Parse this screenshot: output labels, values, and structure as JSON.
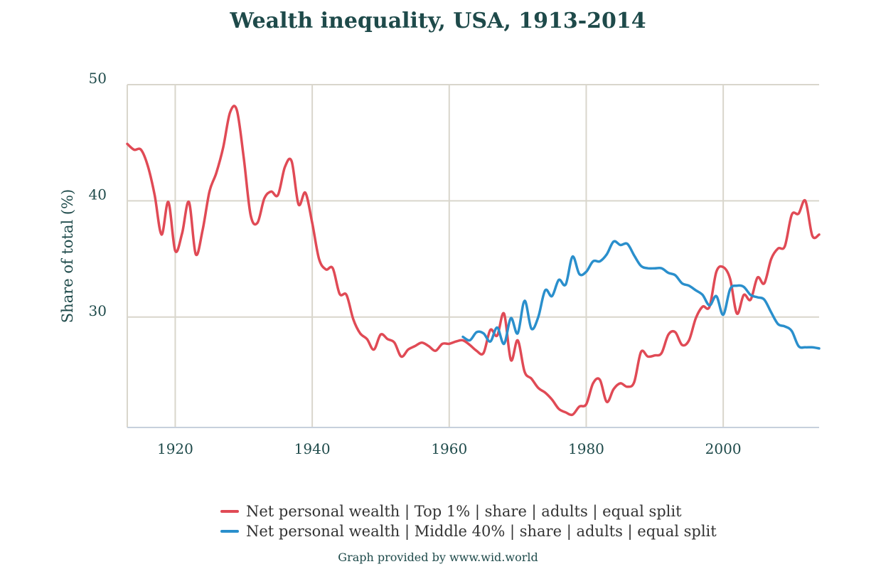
{
  "chart_data": {
    "type": "line",
    "title": "Wealth inequality, USA, 1913-2014",
    "ylabel": "Share of total (%)",
    "xlim": [
      1913,
      2014
    ],
    "ylim": [
      20.5,
      50
    ],
    "x_ticks": [
      1920,
      1940,
      1960,
      1980,
      2000
    ],
    "y_ticks": [
      30,
      40,
      50
    ],
    "grid": true,
    "legend_position": "bottom",
    "series": [
      {
        "name": "Net personal wealth | Top 1% | share | adults | equal split",
        "color": "#e04a55",
        "points": [
          [
            1913,
            44.9
          ],
          [
            1914,
            44.4
          ],
          [
            1915,
            44.4
          ],
          [
            1916,
            43.0
          ],
          [
            1917,
            40.5
          ],
          [
            1918,
            37.1
          ],
          [
            1919,
            39.9
          ],
          [
            1920,
            35.7
          ],
          [
            1921,
            37.2
          ],
          [
            1922,
            39.9
          ],
          [
            1923,
            35.4
          ],
          [
            1924,
            37.5
          ],
          [
            1925,
            40.8
          ],
          [
            1926,
            42.4
          ],
          [
            1927,
            44.6
          ],
          [
            1928,
            47.6
          ],
          [
            1929,
            47.8
          ],
          [
            1930,
            43.7
          ],
          [
            1931,
            38.8
          ],
          [
            1932,
            38.1
          ],
          [
            1933,
            40.2
          ],
          [
            1934,
            40.8
          ],
          [
            1935,
            40.5
          ],
          [
            1936,
            42.9
          ],
          [
            1937,
            43.4
          ],
          [
            1938,
            39.7
          ],
          [
            1939,
            40.7
          ],
          [
            1940,
            38.1
          ],
          [
            1941,
            35.0
          ],
          [
            1942,
            34.1
          ],
          [
            1943,
            34.2
          ],
          [
            1944,
            32.0
          ],
          [
            1945,
            31.9
          ],
          [
            1946,
            29.8
          ],
          [
            1947,
            28.6
          ],
          [
            1948,
            28.1
          ],
          [
            1949,
            27.2
          ],
          [
            1950,
            28.5
          ],
          [
            1951,
            28.1
          ],
          [
            1952,
            27.8
          ],
          [
            1953,
            26.6
          ],
          [
            1954,
            27.2
          ],
          [
            1955,
            27.5
          ],
          [
            1956,
            27.8
          ],
          [
            1957,
            27.5
          ],
          [
            1958,
            27.1
          ],
          [
            1959,
            27.7
          ],
          [
            1960,
            27.7
          ],
          [
            1961,
            27.9
          ],
          [
            1962,
            28.0
          ],
          [
            1963,
            27.6
          ],
          [
            1964,
            27.1
          ],
          [
            1965,
            26.9
          ],
          [
            1966,
            28.9
          ],
          [
            1967,
            28.4
          ],
          [
            1968,
            30.3
          ],
          [
            1969,
            26.3
          ],
          [
            1970,
            28.0
          ],
          [
            1971,
            25.3
          ],
          [
            1972,
            24.7
          ],
          [
            1973,
            23.9
          ],
          [
            1974,
            23.5
          ],
          [
            1975,
            22.9
          ],
          [
            1976,
            22.1
          ],
          [
            1977,
            21.8
          ],
          [
            1978,
            21.6
          ],
          [
            1979,
            22.3
          ],
          [
            1980,
            22.5
          ],
          [
            1981,
            24.3
          ],
          [
            1982,
            24.6
          ],
          [
            1983,
            22.7
          ],
          [
            1984,
            23.8
          ],
          [
            1985,
            24.3
          ],
          [
            1986,
            24.0
          ],
          [
            1987,
            24.4
          ],
          [
            1988,
            27.0
          ],
          [
            1989,
            26.6
          ],
          [
            1990,
            26.7
          ],
          [
            1991,
            26.9
          ],
          [
            1992,
            28.5
          ],
          [
            1993,
            28.7
          ],
          [
            1994,
            27.6
          ],
          [
            1995,
            28.0
          ],
          [
            1996,
            29.9
          ],
          [
            1997,
            30.9
          ],
          [
            1998,
            30.9
          ],
          [
            1999,
            33.9
          ],
          [
            2000,
            34.3
          ],
          [
            2001,
            33.3
          ],
          [
            2002,
            30.3
          ],
          [
            2003,
            31.9
          ],
          [
            2004,
            31.5
          ],
          [
            2005,
            33.4
          ],
          [
            2006,
            32.9
          ],
          [
            2007,
            35.0
          ],
          [
            2008,
            35.9
          ],
          [
            2009,
            36.1
          ],
          [
            2010,
            38.8
          ],
          [
            2011,
            38.9
          ],
          [
            2012,
            40.0
          ],
          [
            2013,
            37.0
          ],
          [
            2014,
            37.1
          ]
        ]
      },
      {
        "name": "Net personal wealth | Middle 40% | share | adults | equal split",
        "color": "#2a8fcc",
        "points": [
          [
            1962,
            28.3
          ],
          [
            1963,
            28.0
          ],
          [
            1964,
            28.7
          ],
          [
            1965,
            28.6
          ],
          [
            1966,
            27.9
          ],
          [
            1967,
            29.1
          ],
          [
            1968,
            27.7
          ],
          [
            1969,
            29.9
          ],
          [
            1970,
            28.6
          ],
          [
            1971,
            31.4
          ],
          [
            1972,
            29.0
          ],
          [
            1973,
            30.0
          ],
          [
            1974,
            32.3
          ],
          [
            1975,
            31.8
          ],
          [
            1976,
            33.2
          ],
          [
            1977,
            32.8
          ],
          [
            1978,
            35.2
          ],
          [
            1979,
            33.7
          ],
          [
            1980,
            33.9
          ],
          [
            1981,
            34.8
          ],
          [
            1982,
            34.8
          ],
          [
            1983,
            35.4
          ],
          [
            1984,
            36.5
          ],
          [
            1985,
            36.2
          ],
          [
            1986,
            36.3
          ],
          [
            1987,
            35.3
          ],
          [
            1988,
            34.4
          ],
          [
            1989,
            34.2
          ],
          [
            1990,
            34.2
          ],
          [
            1991,
            34.2
          ],
          [
            1992,
            33.8
          ],
          [
            1993,
            33.6
          ],
          [
            1994,
            32.9
          ],
          [
            1995,
            32.7
          ],
          [
            1996,
            32.3
          ],
          [
            1997,
            31.9
          ],
          [
            1998,
            31.0
          ],
          [
            1999,
            31.8
          ],
          [
            2000,
            30.2
          ],
          [
            2001,
            32.4
          ],
          [
            2002,
            32.7
          ],
          [
            2003,
            32.6
          ],
          [
            2004,
            31.9
          ],
          [
            2005,
            31.7
          ],
          [
            2006,
            31.5
          ],
          [
            2007,
            30.4
          ],
          [
            2008,
            29.4
          ],
          [
            2009,
            29.2
          ],
          [
            2010,
            28.8
          ],
          [
            2011,
            27.5
          ],
          [
            2012,
            27.4
          ],
          [
            2013,
            27.4
          ],
          [
            2014,
            27.3
          ]
        ]
      }
    ]
  },
  "footer": {
    "credit": "Graph provided by www.wid.world"
  }
}
